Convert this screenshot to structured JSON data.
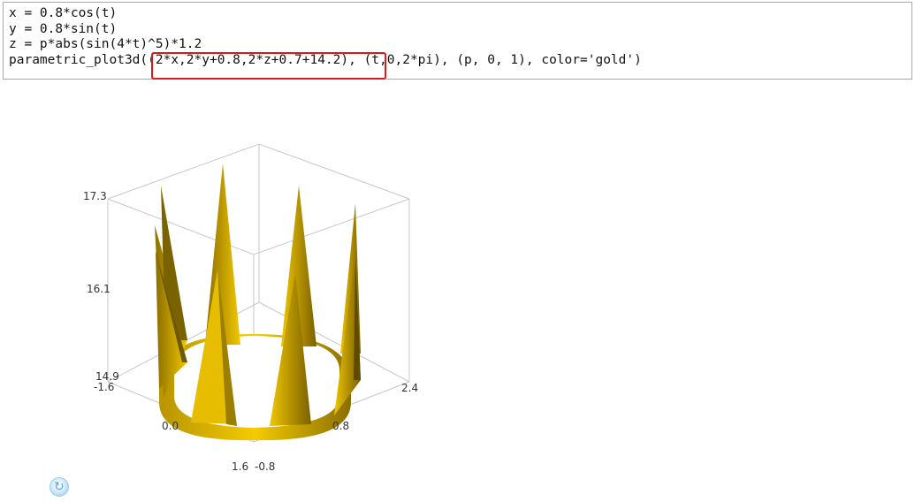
{
  "code_cell": {
    "lines": [
      "x = 0.8*cos(t)",
      "y = 0.8*sin(t)",
      "z = p*abs(sin(4*t)^5)*1.2",
      "parametric_plot3d((2*x,2*y+0.8,2*z+0.7+14.2), (t,0,2*pi), (p, 0, 1), color='gold')"
    ]
  },
  "plot": {
    "surface_color": "#e6bd00",
    "z_ticks": [
      "17.3",
      "16.1",
      "14.9"
    ],
    "left_axis_ticks": [
      "-1.6",
      "0.0",
      "1.6"
    ],
    "right_axis_ticks": [
      "-0.8",
      "0.8",
      "2.4"
    ]
  },
  "refresh_button": {
    "icon": "refresh-icon",
    "glyph": "↻"
  }
}
